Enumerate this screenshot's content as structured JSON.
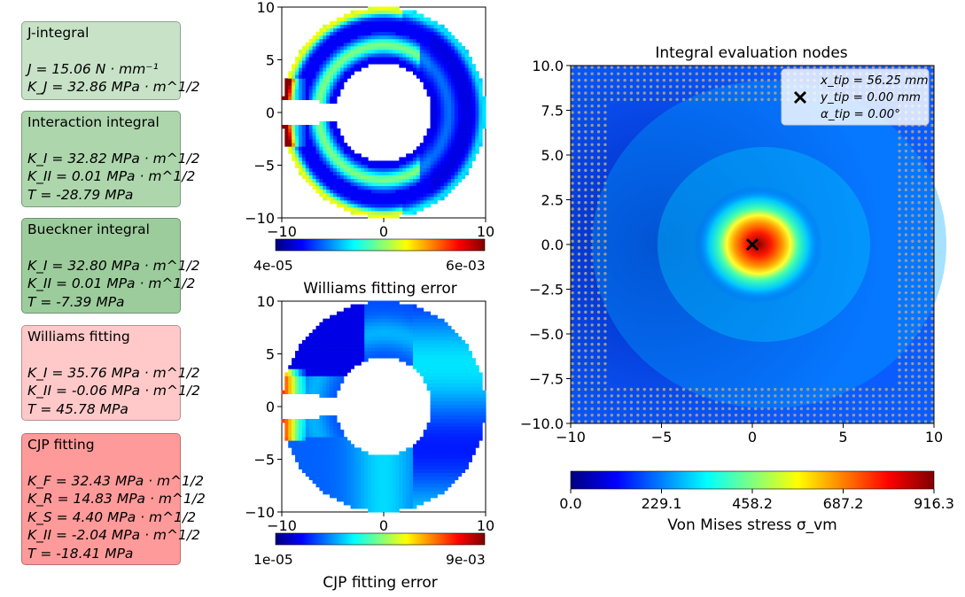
{
  "panels": [
    {
      "title": "J-integral",
      "color": "#c7e2c7",
      "lines": [
        "J = 15.06 N · mm⁻¹",
        "K_J = 32.86 MPa · m^1/2"
      ]
    },
    {
      "title": "Interaction integral",
      "color": "#add6ad",
      "lines": [
        "K_I = 32.82 MPa · m^1/2",
        "K_II = 0.01 MPa · m^1/2",
        "T = -28.79 MPa"
      ]
    },
    {
      "title": "Bueckner integral",
      "color": "#9ccc9c",
      "lines": [
        "K_I = 32.80 MPa · m^1/2",
        "K_II = 0.01 MPa · m^1/2",
        "T = -7.39 MPa"
      ]
    },
    {
      "title": "Williams fitting",
      "color": "#ffc9c9",
      "lines": [
        "K_I = 35.76 MPa · m^1/2",
        "K_II = -0.06 MPa · m^1/2",
        "T = 45.78 MPa"
      ]
    },
    {
      "title": "CJP fitting",
      "color": "#ff9a9a",
      "lines": [
        "K_F = 32.43 MPa · m^1/2",
        "K_R = 14.83 MPa · m^1/2",
        "K_S = 4.40 MPa · m^1/2",
        "K_II = -2.04 MPa · m^1/2",
        "T = -18.41 MPa"
      ]
    }
  ],
  "chart_data": [
    {
      "type": "scatter",
      "subtype": "annulus error map",
      "title": "",
      "xticks": [
        "−10",
        "0",
        "10"
      ],
      "yticks": [
        "10",
        "5",
        "0",
        "−5",
        "−10"
      ],
      "xlim": [
        -10,
        10
      ],
      "ylim": [
        -10,
        10
      ],
      "colorbar": {
        "min_label": "4e-05",
        "max_label": "6e-03",
        "label": "Williams fitting error",
        "colormap": "jet"
      }
    },
    {
      "type": "scatter",
      "subtype": "annulus error map",
      "title": "",
      "xticks": [
        "−10",
        "0",
        "10"
      ],
      "yticks": [
        "10",
        "5",
        "0",
        "−5",
        "−10"
      ],
      "xlim": [
        -10,
        10
      ],
      "ylim": [
        -10,
        10
      ],
      "colorbar": {
        "min_label": "1e-05",
        "max_label": "9e-03",
        "label": "CJP fitting error",
        "colormap": "jet"
      }
    },
    {
      "type": "heatmap",
      "title": "Integral evaluation nodes",
      "xticks": [
        "−10",
        "−5",
        "0",
        "5",
        "10"
      ],
      "yticks": [
        "10.0",
        "7.5",
        "5.0",
        "2.5",
        "0.0",
        "−2.5",
        "−5.0",
        "−7.5",
        "−10.0"
      ],
      "xlim": [
        -10,
        10
      ],
      "ylim": [
        -10,
        10
      ],
      "crack_tip": {
        "x": 0,
        "y": 0,
        "marker": "x"
      },
      "legend": {
        "position": "top-right",
        "lines": [
          "x_tip = 56.25 mm",
          "y_tip = 0.00 mm",
          "α_tip = 0.00°"
        ]
      },
      "colorbar": {
        "ticks": [
          "0.0",
          "229.1",
          "458.2",
          "687.2",
          "916.3"
        ],
        "label": "Von Mises stress σ_vm",
        "colormap": "jet"
      }
    }
  ]
}
